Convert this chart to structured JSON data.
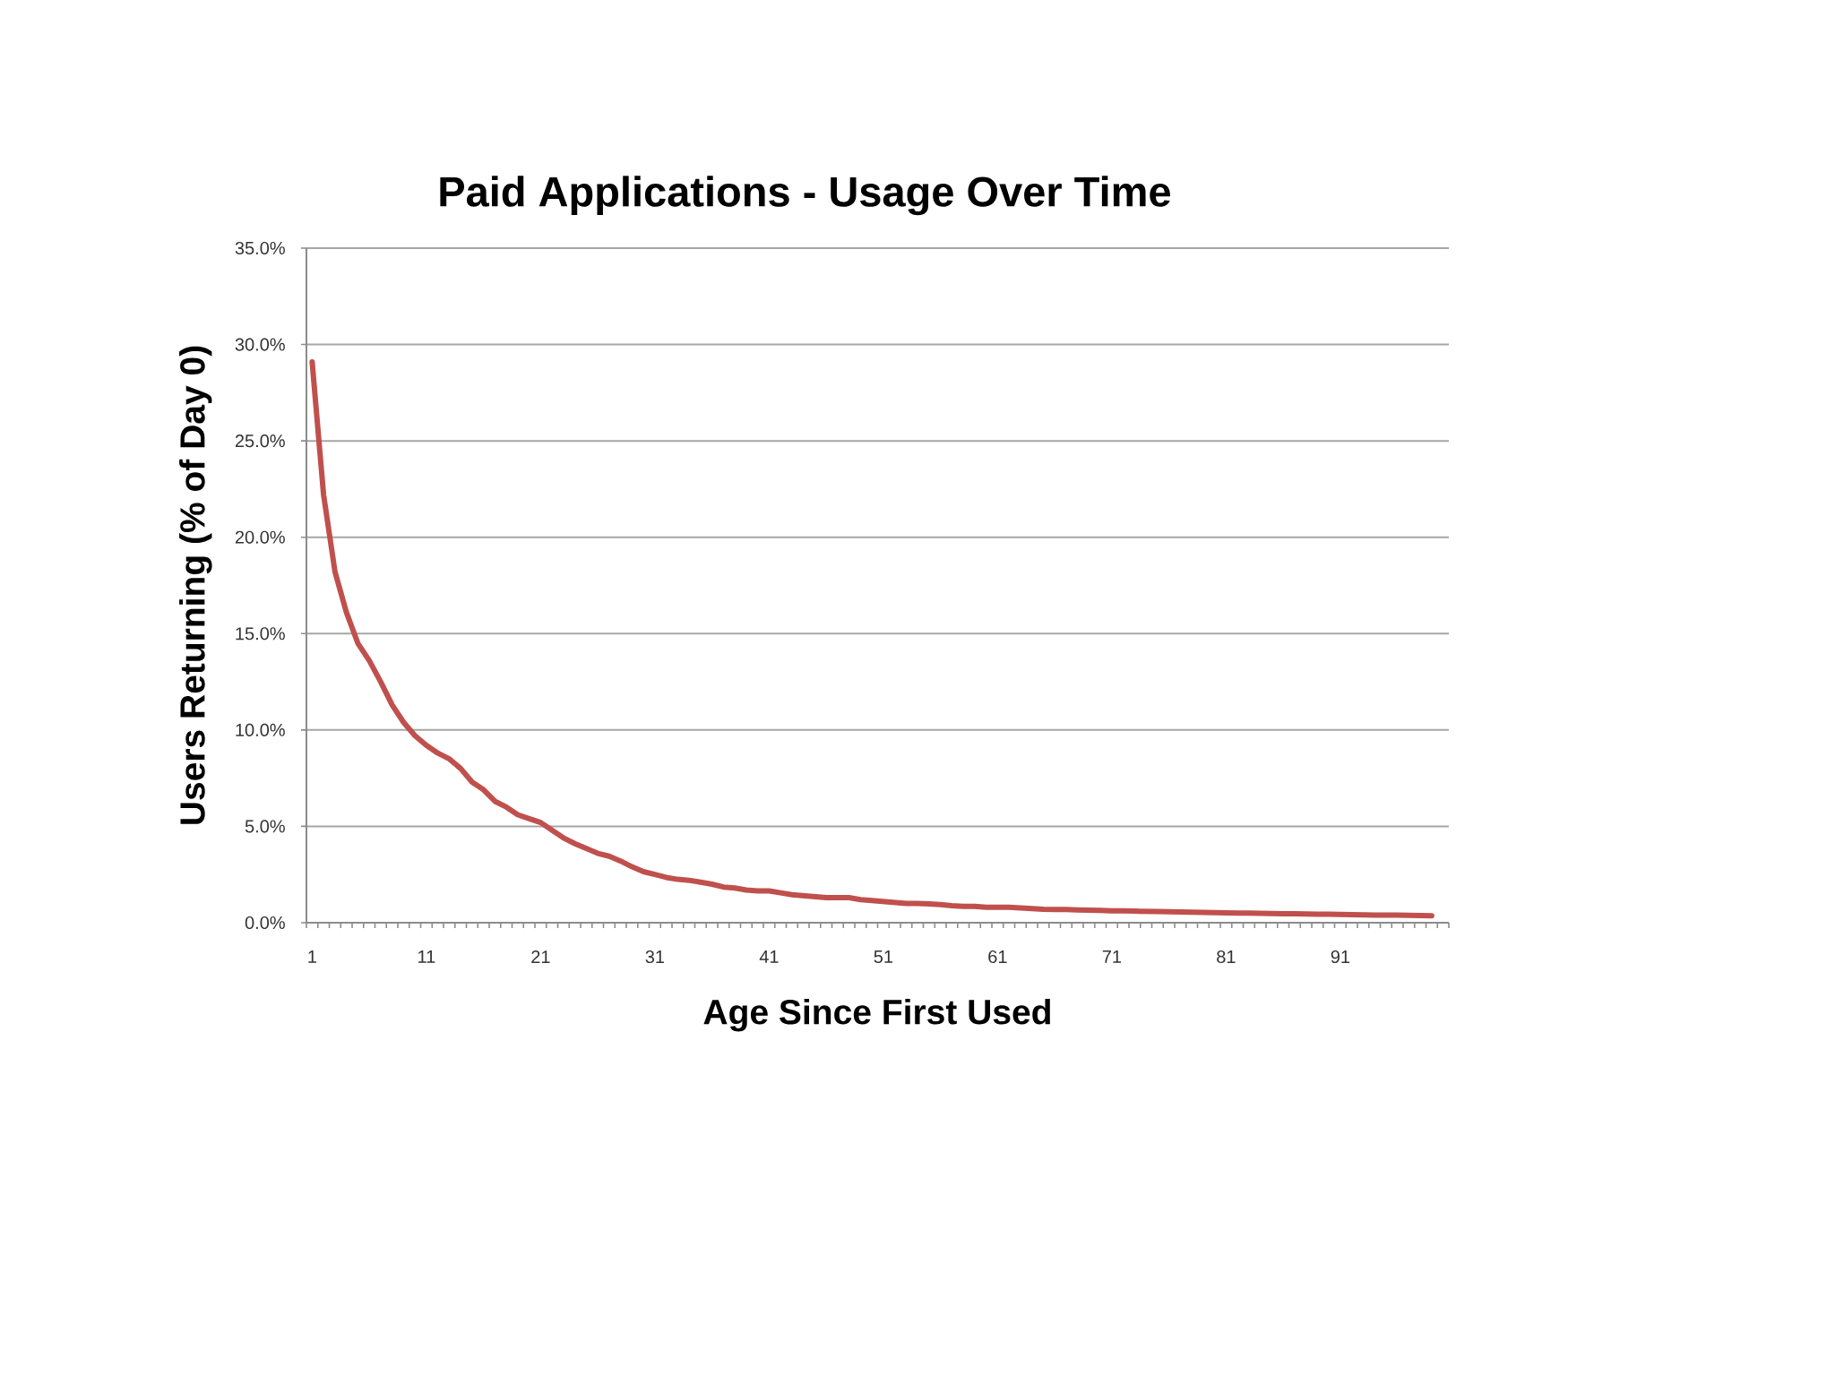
{
  "chart_data": {
    "type": "line",
    "title": "Paid Applications - Usage Over Time",
    "xlabel": "Age Since First Used",
    "ylabel": "Users Returning (% of Day 0)",
    "categories": [
      "1",
      null,
      null,
      null,
      null,
      null,
      null,
      null,
      null,
      null,
      "11",
      null,
      null,
      null,
      null,
      null,
      null,
      null,
      null,
      null,
      "21",
      null,
      null,
      null,
      null,
      null,
      null,
      null,
      null,
      null,
      "31",
      null,
      null,
      null,
      null,
      null,
      null,
      null,
      null,
      null,
      "41",
      null,
      null,
      null,
      null,
      null,
      null,
      null,
      null,
      null,
      "51",
      null,
      null,
      null,
      null,
      null,
      null,
      null,
      null,
      null,
      "61",
      null,
      null,
      null,
      null,
      null,
      null,
      null,
      null,
      null,
      "71",
      null,
      null,
      null,
      null,
      null,
      null,
      null,
      null,
      null,
      "81",
      null,
      null,
      null,
      null,
      null,
      null,
      null,
      null,
      null,
      "91",
      null,
      null,
      null,
      null,
      null,
      null,
      null,
      null,
      null
    ],
    "series": [
      {
        "color": "#c0504d",
        "values": [
          29.1,
          22.2,
          18.2,
          16.1,
          14.5,
          13.6,
          12.5,
          11.3,
          10.4,
          9.7,
          9.2,
          8.8,
          8.5,
          8.0,
          7.3,
          6.9,
          6.3,
          6.0,
          5.6,
          5.4,
          5.2,
          4.8,
          4.4,
          4.1,
          3.85,
          3.6,
          3.45,
          3.2,
          2.9,
          2.65,
          2.5,
          2.35,
          2.25,
          2.2,
          2.1,
          2.0,
          1.85,
          1.8,
          1.7,
          1.65,
          1.65,
          1.55,
          1.45,
          1.4,
          1.35,
          1.3,
          1.3,
          1.3,
          1.2,
          1.15,
          1.1,
          1.05,
          1.0,
          1.0,
          0.98,
          0.94,
          0.88,
          0.85,
          0.85,
          0.8,
          0.8,
          0.8,
          0.77,
          0.73,
          0.7,
          0.69,
          0.68,
          0.66,
          0.65,
          0.64,
          0.62,
          0.61,
          0.6,
          0.59,
          0.58,
          0.57,
          0.56,
          0.55,
          0.53,
          0.52,
          0.51,
          0.5,
          0.5,
          0.49,
          0.48,
          0.47,
          0.46,
          0.45,
          0.44,
          0.44,
          0.43,
          0.42,
          0.41,
          0.4,
          0.4,
          0.39,
          0.38,
          0.37,
          0.36,
          null
        ]
      }
    ],
    "ylim": [
      0,
      35
    ],
    "yticks": [
      {
        "value": 0,
        "label": "0.0%"
      },
      {
        "value": 5,
        "label": "5.0%"
      },
      {
        "value": 10,
        "label": "10.0%"
      },
      {
        "value": 15,
        "label": "15.0%"
      },
      {
        "value": 20,
        "label": "20.0%"
      },
      {
        "value": 25,
        "label": "25.0%"
      },
      {
        "value": 30,
        "label": "30.0%"
      },
      {
        "value": 35,
        "label": "35.0%"
      }
    ],
    "grid": "y",
    "marker": "none",
    "line_style": "solid"
  }
}
